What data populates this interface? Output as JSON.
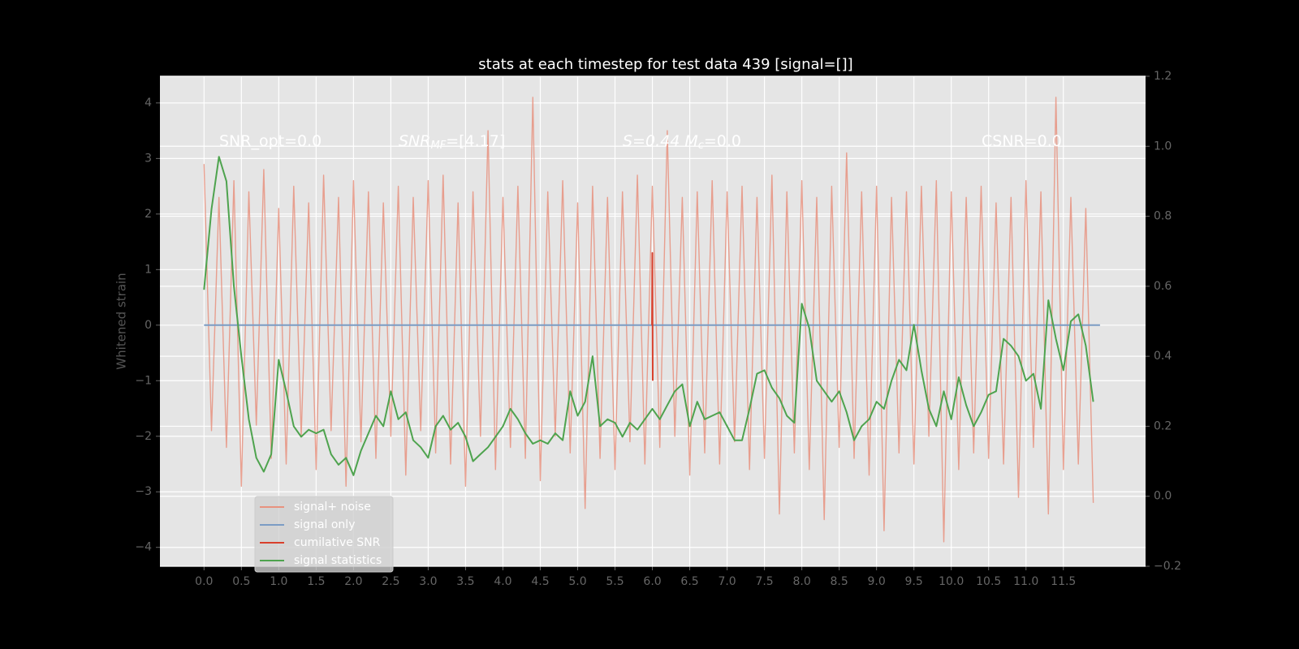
{
  "chart_data": {
    "type": "line",
    "title": "stats at each timestep for test data 439 [signal=[]]",
    "ylabel": "Whitened strain",
    "annotations": [
      {
        "main": "SNR_opt=0.0"
      },
      {
        "main": "SNR",
        "sub": "MF",
        "rest": "=[4.17]"
      },
      {
        "main": "S=0.44   M",
        "sub": "c",
        "rest": "=0.0"
      },
      {
        "main": "CSNR=0.0"
      }
    ],
    "x": [
      0.0,
      0.1,
      0.2,
      0.3,
      0.4,
      0.5,
      0.6,
      0.7,
      0.8,
      0.9,
      1.0,
      1.1,
      1.2,
      1.3,
      1.4,
      1.5,
      1.6,
      1.7,
      1.8,
      1.9,
      2.0,
      2.1,
      2.2,
      2.3,
      2.4,
      2.5,
      2.6,
      2.7,
      2.8,
      2.9,
      3.0,
      3.1,
      3.2,
      3.3,
      3.4,
      3.5,
      3.6,
      3.7,
      3.8,
      3.9,
      4.0,
      4.1,
      4.2,
      4.3,
      4.4,
      4.5,
      4.6,
      4.7,
      4.8,
      4.9,
      5.0,
      5.1,
      5.2,
      5.3,
      5.4,
      5.5,
      5.6,
      5.7,
      5.8,
      5.9,
      6.0,
      6.1,
      6.2,
      6.3,
      6.4,
      6.5,
      6.6,
      6.7,
      6.8,
      6.9,
      7.0,
      7.1,
      7.2,
      7.3,
      7.4,
      7.5,
      7.6,
      7.7,
      7.8,
      7.9,
      8.0,
      8.1,
      8.2,
      8.3,
      8.4,
      8.5,
      8.6,
      8.7,
      8.8,
      8.9,
      9.0,
      9.1,
      9.2,
      9.3,
      9.4,
      9.5,
      9.6,
      9.7,
      9.8,
      9.9,
      10.0,
      10.1,
      10.2,
      10.3,
      10.4,
      10.5,
      10.6,
      10.7,
      10.8,
      10.9,
      11.0,
      11.1,
      11.2,
      11.3,
      11.4,
      11.5,
      11.6,
      11.7,
      11.8,
      11.9
    ],
    "series": [
      {
        "name": "signal+ noise",
        "color": "#e8927f",
        "axis": "y",
        "values": [
          2.9,
          -1.9,
          2.3,
          -2.2,
          2.6,
          -2.9,
          2.4,
          -1.8,
          2.8,
          -2.4,
          2.1,
          -2.5,
          2.5,
          -2.0,
          2.2,
          -2.6,
          2.7,
          -1.9,
          2.3,
          -2.9,
          2.6,
          -2.1,
          2.4,
          -2.4,
          2.2,
          -2.0,
          2.5,
          -2.7,
          2.3,
          -1.9,
          2.6,
          -2.3,
          2.7,
          -2.5,
          2.2,
          -2.9,
          2.4,
          -2.0,
          3.5,
          -2.6,
          2.3,
          -2.2,
          2.5,
          -2.4,
          4.1,
          -2.8,
          2.4,
          -2.0,
          2.6,
          -2.3,
          2.2,
          -3.3,
          2.5,
          -2.4,
          2.3,
          -2.6,
          2.4,
          -2.1,
          2.7,
          -2.5,
          2.5,
          -2.2,
          3.5,
          -2.0,
          2.3,
          -2.7,
          2.4,
          -2.3,
          2.6,
          -2.5,
          2.4,
          -2.1,
          2.5,
          -2.6,
          2.3,
          -2.4,
          2.7,
          -3.4,
          2.4,
          -2.3,
          2.6,
          -2.6,
          2.3,
          -3.5,
          2.5,
          -2.2,
          3.1,
          -2.4,
          2.4,
          -2.7,
          2.5,
          -3.7,
          2.3,
          -2.3,
          2.4,
          -2.5,
          2.5,
          -2.0,
          2.6,
          -3.9,
          2.4,
          -2.6,
          2.3,
          -2.3,
          2.5,
          -2.4,
          2.2,
          -2.5,
          2.3,
          -3.1,
          2.6,
          -2.2,
          2.4,
          -3.4,
          4.1,
          -2.6,
          2.3,
          -2.5,
          2.1,
          -3.2
        ]
      },
      {
        "name": "signal only",
        "color": "#7b9cc4",
        "axis": "y",
        "x": [
          0.0,
          11.99
        ],
        "values": [
          0,
          0
        ]
      },
      {
        "name": "cumilative SNR",
        "color": "#d9402c",
        "axis": "y",
        "x": [
          5.995,
          6.0,
          6.005
        ],
        "values": [
          0,
          1.3,
          -1.0
        ]
      },
      {
        "name": "signal statistics",
        "color": "#4ea34e",
        "axis": "y2",
        "values": [
          0.59,
          0.82,
          0.97,
          0.9,
          0.6,
          0.4,
          0.22,
          0.11,
          0.07,
          0.12,
          0.39,
          0.3,
          0.2,
          0.17,
          0.19,
          0.18,
          0.19,
          0.12,
          0.09,
          0.11,
          0.06,
          0.13,
          0.18,
          0.23,
          0.2,
          0.3,
          0.22,
          0.24,
          0.16,
          0.14,
          0.11,
          0.2,
          0.23,
          0.19,
          0.21,
          0.17,
          0.1,
          0.12,
          0.14,
          0.17,
          0.2,
          0.25,
          0.22,
          0.18,
          0.15,
          0.16,
          0.15,
          0.18,
          0.16,
          0.3,
          0.23,
          0.27,
          0.4,
          0.2,
          0.22,
          0.21,
          0.17,
          0.21,
          0.19,
          0.22,
          0.25,
          0.22,
          0.26,
          0.3,
          0.32,
          0.2,
          0.27,
          0.22,
          0.23,
          0.24,
          0.2,
          0.16,
          0.16,
          0.25,
          0.35,
          0.36,
          0.31,
          0.28,
          0.23,
          0.21,
          0.55,
          0.48,
          0.33,
          0.3,
          0.27,
          0.3,
          0.24,
          0.16,
          0.2,
          0.22,
          0.27,
          0.25,
          0.33,
          0.39,
          0.36,
          0.49,
          0.36,
          0.25,
          0.2,
          0.3,
          0.22,
          0.34,
          0.26,
          0.2,
          0.24,
          0.29,
          0.3,
          0.45,
          0.43,
          0.4,
          0.33,
          0.35,
          0.25,
          0.56,
          0.45,
          0.36,
          0.5,
          0.52,
          0.43,
          0.27
        ]
      }
    ],
    "xlim": [
      -0.59,
      12.6
    ],
    "xticks": [
      {
        "value": 0,
        "label": "0.0"
      },
      0.5,
      {
        "value": 1,
        "label": "1.0"
      },
      1.5,
      {
        "value": 2,
        "label": "2.0"
      },
      2.5,
      {
        "value": 3,
        "label": "3.0"
      },
      3.5,
      {
        "value": 4,
        "label": "4.0"
      },
      4.5,
      {
        "value": 5,
        "label": "5.0"
      },
      5.5,
      {
        "value": 6,
        "label": "6.0"
      },
      6.5,
      {
        "value": 7,
        "label": "7.0"
      },
      7.5,
      {
        "value": 8,
        "label": "8.0"
      },
      8.5,
      {
        "value": 9,
        "label": "9.0"
      },
      9.5,
      {
        "value": 10,
        "label": "10.0"
      },
      10.5,
      {
        "value": 11,
        "label": "11.0"
      },
      11.5
    ],
    "ylim": [
      -4.34,
      4.48
    ],
    "yticks": [
      {
        "value": -4,
        "label": "−4"
      },
      {
        "value": -3,
        "label": "−3"
      },
      {
        "value": -2,
        "label": "−2"
      },
      {
        "value": -1,
        "label": "−1"
      },
      0,
      1,
      2,
      3,
      4
    ],
    "y2lim": [
      -0.2,
      1.2
    ],
    "y2ticks": [
      {
        "value": -0.2,
        "label": "−0.2"
      },
      {
        "value": 0,
        "label": "0.0"
      },
      0.2,
      0.4,
      0.6,
      0.8,
      {
        "value": 1,
        "label": "1.0"
      },
      1.2
    ],
    "grid": true,
    "legend": "lower left"
  }
}
